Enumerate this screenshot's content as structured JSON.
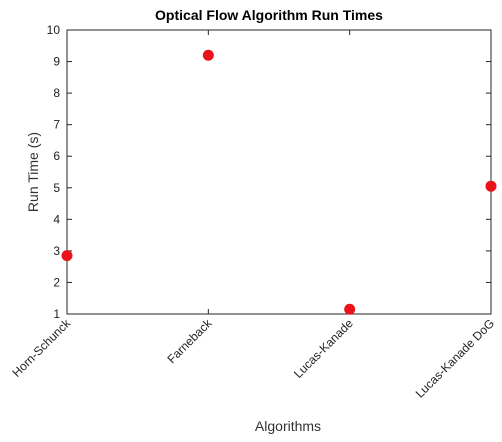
{
  "chart_data": {
    "type": "scatter",
    "title": "Optical Flow Algorithm Run Times",
    "xlabel": "Algorithms",
    "ylabel": "Run Time (s)",
    "categories": [
      "Horn-Schunck",
      "Farneback",
      "Lucas-Kanade",
      "Lucas-Kanade DoG"
    ],
    "values": [
      2.85,
      9.2,
      1.15,
      5.05
    ],
    "ylim": [
      1,
      10
    ],
    "yticks": [
      "1",
      "2",
      "3",
      "4",
      "5",
      "6",
      "7",
      "8",
      "9",
      "10"
    ],
    "grid": false,
    "marker_color": "#e8131b"
  }
}
